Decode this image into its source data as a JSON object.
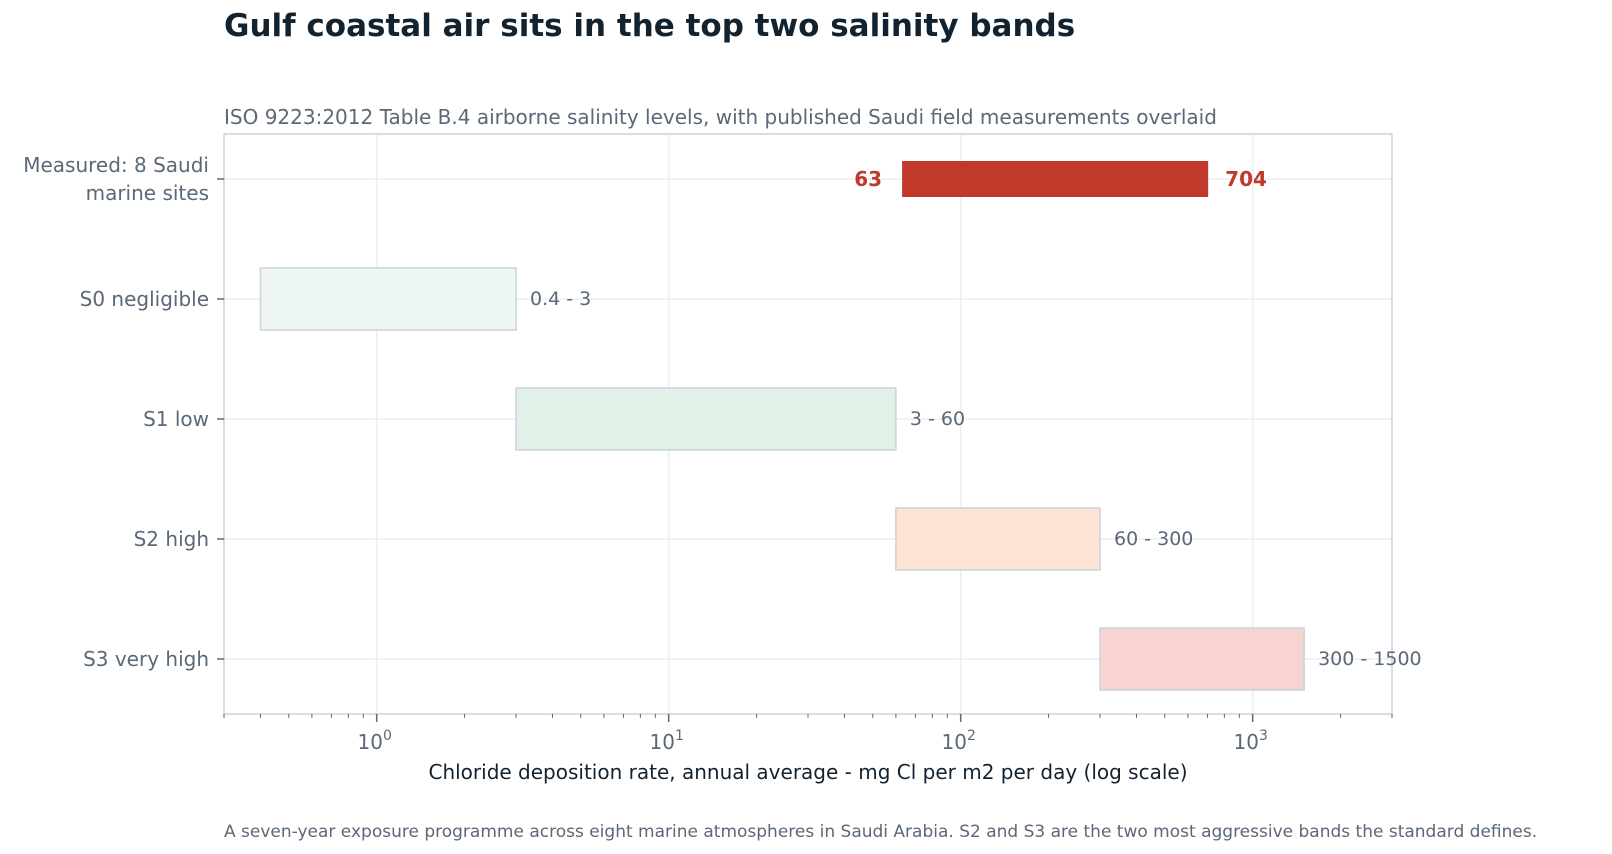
{
  "title": "Gulf coastal air sits in the top two salinity bands",
  "subtitle": "ISO 9223:2012 Table B.4 airborne salinity levels, with published Saudi field measurements overlaid",
  "footnote": "A seven-year exposure programme across eight marine atmospheres in Saudi Arabia. S2 and S3 are the two most aggressive bands the standard defines.",
  "colors": {
    "measured": "#c0392b",
    "s0": "#eef6f1",
    "s1": "#e2f0e8",
    "s2": "#fce3d3",
    "s3": "#f8d3cf",
    "band_edge": "#c9d3dc",
    "text": "#5a6878",
    "grid": "#eceff2",
    "axis": "#c9d3dc"
  },
  "chart_data": {
    "type": "bar",
    "orientation": "horizontal-range",
    "xlabel": "Chloride deposition rate, annual average - mg Cl per m2 per day (log scale)",
    "x_scale": "log",
    "xlim": [
      0.3,
      3000
    ],
    "x_ticks": [
      {
        "value": 1,
        "base": "10",
        "exp": "0"
      },
      {
        "value": 10,
        "base": "10",
        "exp": "1"
      },
      {
        "value": 100,
        "base": "10",
        "exp": "2"
      },
      {
        "value": 1000,
        "base": "10",
        "exp": "3"
      }
    ],
    "grid": true,
    "categories": [
      {
        "label_lines": [
          "Measured: 8 Saudi",
          "marine sites"
        ],
        "low": 63,
        "high": 704,
        "kind": "measured",
        "low_label": "63",
        "high_label": "704",
        "color_key": "measured"
      },
      {
        "label_lines": [
          "S0  negligible"
        ],
        "low": 0.4,
        "high": 3,
        "kind": "band",
        "range_label": "0.4 - 3",
        "color_key": "s0"
      },
      {
        "label_lines": [
          "S1  low"
        ],
        "low": 3,
        "high": 60,
        "kind": "band",
        "range_label": "3 - 60",
        "color_key": "s1"
      },
      {
        "label_lines": [
          "S2  high"
        ],
        "low": 60,
        "high": 300,
        "kind": "band",
        "range_label": "60 - 300",
        "color_key": "s2"
      },
      {
        "label_lines": [
          "S3  very high"
        ],
        "low": 300,
        "high": 1500,
        "kind": "band",
        "range_label": "300 - 1500",
        "color_key": "s3"
      }
    ]
  }
}
